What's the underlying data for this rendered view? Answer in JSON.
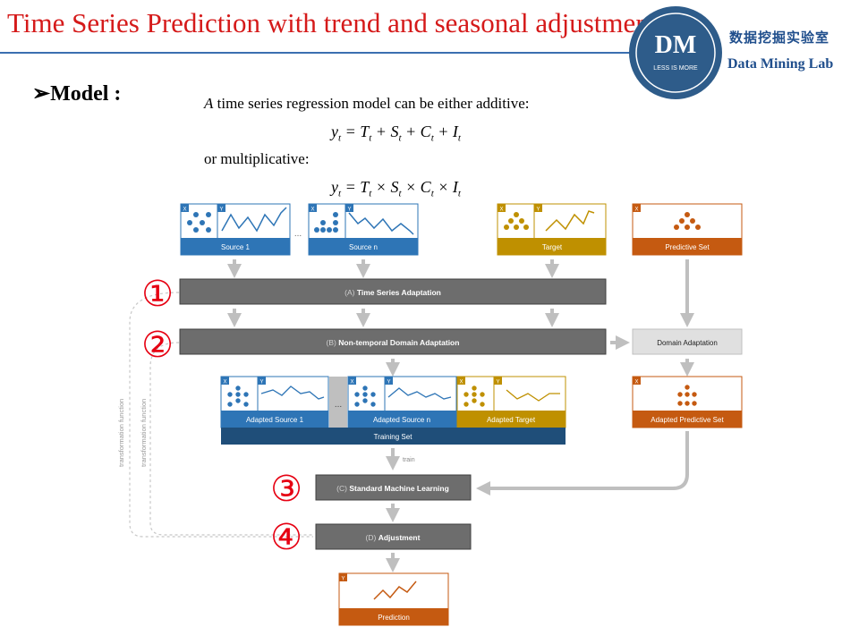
{
  "slide": {
    "title": "Time Series Prediction with trend and seasonal adjustment",
    "logo": {
      "monogram": "DM",
      "motto": "LESS IS MORE",
      "name_cn": "数据挖掘实验室",
      "name_en": "Data Mining Lab"
    },
    "heading": "Model :",
    "intro_italic": "A",
    "intro_rest": " time series regression model can be either additive:",
    "eq_additive": {
      "lhs": "y",
      "terms": [
        "T",
        "S",
        "C",
        "I"
      ],
      "sub": "t",
      "op": "+"
    },
    "or_text": "or multiplicative:",
    "eq_multiplicative": {
      "lhs": "y",
      "terms": [
        "T",
        "S",
        "C",
        "I"
      ],
      "sub": "t",
      "op": "×"
    }
  },
  "diagram": {
    "colors": {
      "blue": "#2e75b6",
      "gold": "#bf9000",
      "orange": "#c55a11",
      "gray": "#666666",
      "light": "#d9d9d9",
      "navy": "#1f4e79",
      "red": "#e60012"
    },
    "axis_x": "X",
    "axis_y": "Y",
    "ellipsis": "...",
    "sources": {
      "source1": "Source 1",
      "sourcen": "Source n",
      "target": "Target",
      "predictive": "Predictive Set"
    },
    "stages": {
      "a": {
        "prefix": "(A) ",
        "name": "Time Series Adaptation"
      },
      "b": {
        "prefix": "(B) ",
        "name": "Non-temporal Domain Adaptation"
      },
      "c": {
        "prefix": "(C) ",
        "name": "Standard Machine Learning"
      },
      "d": {
        "prefix": "(D) ",
        "name": "Adjustment"
      }
    },
    "domain_adaptation": "Domain Adaptation",
    "adapted": {
      "source1": "Adapted Source 1",
      "sourcen": "Adapted Source n",
      "target": "Adapted Target",
      "predictive": "Adapted Predictive Set"
    },
    "training_set": "Training Set",
    "train": "train",
    "prediction": "Prediction",
    "transformation_function": "transformation function",
    "markers": [
      "①",
      "②",
      "③",
      "④"
    ]
  }
}
